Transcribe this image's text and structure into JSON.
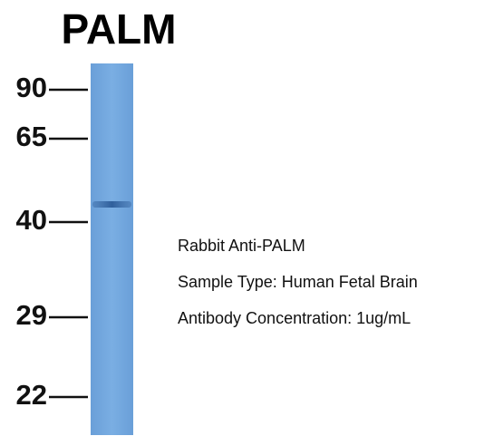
{
  "header": {
    "title": "PALM"
  },
  "markers": [
    {
      "label": "90"
    },
    {
      "label": "65"
    },
    {
      "label": "40"
    },
    {
      "label": "29"
    },
    {
      "label": "22"
    }
  ],
  "annotations": [
    "Rabbit Anti-PALM",
    "Sample Type: Human Fetal Brain",
    "Antibody Concentration: 1ug/mL"
  ]
}
